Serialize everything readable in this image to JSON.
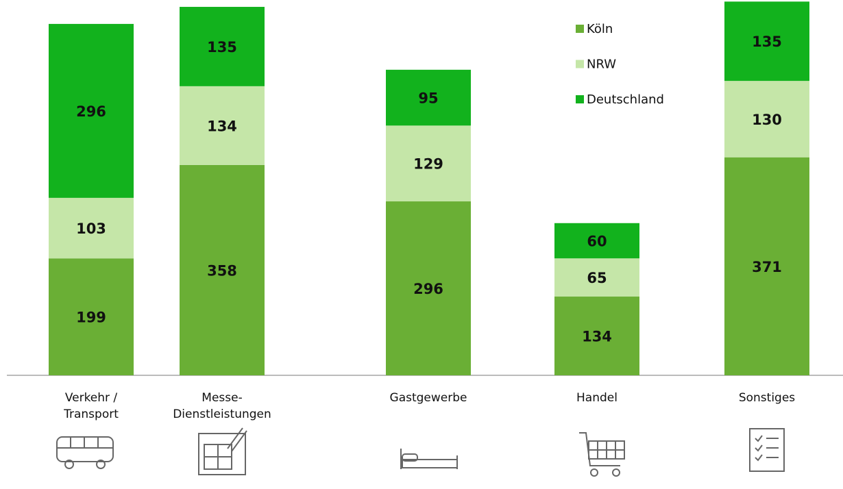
{
  "chart_data": {
    "type": "stacked-bar",
    "categories": [
      [
        "Verkehr /",
        "Transport"
      ],
      [
        "Messe-",
        "Dienstleistungen"
      ],
      [
        "Gastgewerbe"
      ],
      [
        "Handel"
      ],
      [
        "Sonstiges"
      ]
    ],
    "series": [
      {
        "name": "Köln",
        "color": "#6aaf35",
        "values": [
          199,
          358,
          296,
          134,
          371
        ]
      },
      {
        "name": "NRW",
        "color": "#c5e6a8",
        "values": [
          103,
          134,
          129,
          65,
          130
        ]
      },
      {
        "name": "Deutschland",
        "color": "#12b21d",
        "values": [
          296,
          135,
          95,
          60,
          135
        ]
      }
    ]
  }
}
